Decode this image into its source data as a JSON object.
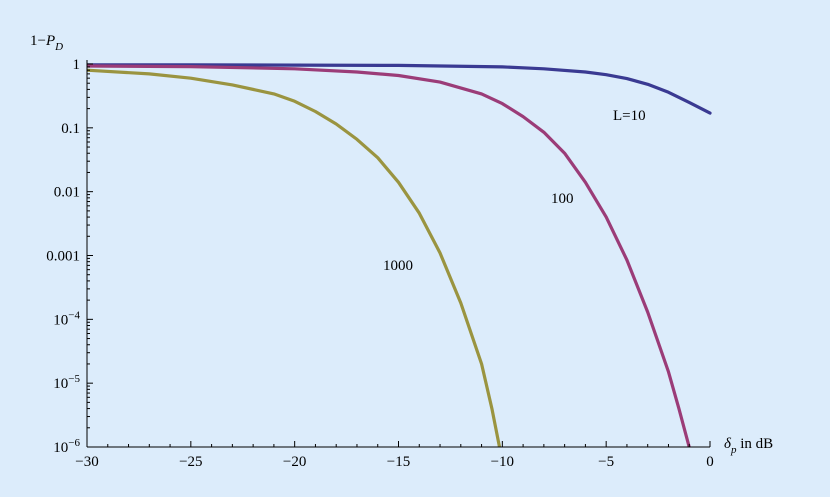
{
  "chart_data": {
    "type": "line",
    "scale": {
      "x": "linear",
      "y": "log10"
    },
    "xlabel": {
      "main": "δ",
      "sub": "p",
      "rest": " in dB"
    },
    "ylabel": {
      "pre": "1−",
      "main": "P",
      "sub": "D"
    },
    "xlim": [
      -30,
      0
    ],
    "ylim": [
      1e-06,
      1
    ],
    "x_ticks": [
      {
        "value": -30,
        "label": "−30"
      },
      {
        "value": -25,
        "label": "−25"
      },
      {
        "value": -20,
        "label": "−20"
      },
      {
        "value": -15,
        "label": "−15"
      },
      {
        "value": -10,
        "label": "−10"
      },
      {
        "value": -5,
        "label": "−5"
      },
      {
        "value": 0,
        "label": "0"
      }
    ],
    "y_ticks": [
      {
        "value": 1,
        "label": "1"
      },
      {
        "value": 0.1,
        "label": "0.1"
      },
      {
        "value": 0.01,
        "label": "0.01"
      },
      {
        "value": 0.001,
        "label": "0.001"
      },
      {
        "value": 0.0001,
        "base": "10",
        "exp": "−4"
      },
      {
        "value": 1e-05,
        "base": "10",
        "exp": "−5"
      },
      {
        "value": 1e-06,
        "base": "10",
        "exp": "−6"
      }
    ],
    "series": [
      {
        "label": "L=10",
        "color": "#3a3a92",
        "x": [
          -30,
          -25,
          -20,
          -15,
          -10,
          -8,
          -6,
          -5,
          -4,
          -3,
          -2,
          -1,
          0
        ],
        "y": [
          0.97,
          0.97,
          0.96,
          0.95,
          0.9,
          0.84,
          0.75,
          0.68,
          0.59,
          0.48,
          0.36,
          0.25,
          0.17
        ]
      },
      {
        "label": "100",
        "color": "#9b3c78",
        "x": [
          -30,
          -25,
          -20,
          -17,
          -15,
          -13,
          -11,
          -10,
          -9,
          -8,
          -7,
          -6,
          -5,
          -4,
          -3,
          -2,
          -1.5,
          -1,
          -0.7,
          -0.5
        ],
        "y": [
          0.93,
          0.91,
          0.84,
          0.75,
          0.66,
          0.52,
          0.34,
          0.24,
          0.15,
          0.085,
          0.04,
          0.014,
          0.004,
          0.00085,
          0.00013,
          1.5e-05,
          4e-06,
          1e-06,
          3e-07,
          1e-07
        ]
      },
      {
        "label": "1000",
        "color": "#9a9440",
        "x": [
          -30,
          -27,
          -25,
          -23,
          -21,
          -20,
          -19,
          -18,
          -17,
          -16,
          -15,
          -14,
          -13,
          -12,
          -11,
          -10.5,
          -10,
          -9.8
        ],
        "y": [
          0.8,
          0.7,
          0.6,
          0.47,
          0.34,
          0.26,
          0.18,
          0.115,
          0.066,
          0.034,
          0.014,
          0.0046,
          0.0011,
          0.00018,
          2e-05,
          4e-06,
          6e-07,
          1e-07
        ]
      }
    ]
  }
}
